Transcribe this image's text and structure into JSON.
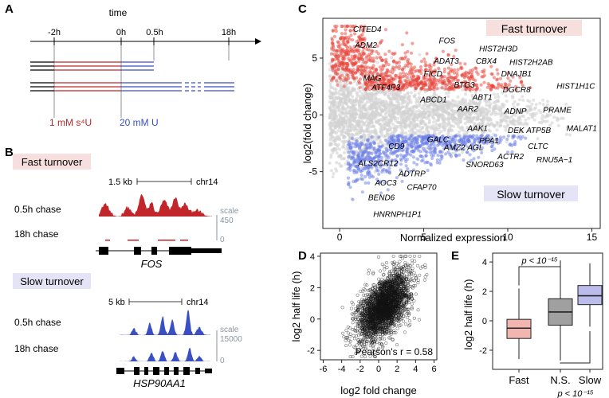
{
  "colors": {
    "red": "#c0262a",
    "blue": "#3a4fc4",
    "pink_bg": "#f6dfdc",
    "lavender_bg": "#e4e4f6",
    "grey_scale": "#8a97a0"
  },
  "panel_a": {
    "letter": "A",
    "title": "time",
    "ticks": [
      "-2h",
      "0h",
      "0.5h",
      "18h"
    ],
    "label_red": "1 mM s⁴U",
    "label_blue": "20 mM U"
  },
  "panel_b": {
    "letter": "B",
    "fast": {
      "title": "Fast turnover",
      "scalebar": "1.5 kb",
      "chrom": "chr14",
      "track1": "0.5h chase",
      "track2": "18h chase",
      "scale_label": "scale",
      "scale_max": "450",
      "scale_min": "0",
      "gene": "FOS"
    },
    "slow": {
      "title": "Slow turnover",
      "scalebar": "5 kb",
      "chrom": "chr14",
      "track1": "0.5h chase",
      "track2": "18h chase",
      "scale_label": "scale",
      "scale_max": "15000",
      "scale_min": "0",
      "gene": "HSP90AA1"
    }
  },
  "panel_c": {
    "letter": "C",
    "fast_label": "Fast turnover",
    "slow_label": "Slow turnover",
    "chart_data": {
      "type": "scatter",
      "xlabel": "Normalized expression",
      "ylabel": "log2(fold change)",
      "xlim": [
        -1,
        15.5
      ],
      "ylim": [
        -10,
        8.5
      ],
      "xticks": [
        "0",
        "5",
        "10",
        "15"
      ],
      "yticks": [
        "-5",
        "0",
        "5"
      ],
      "gene_labels_up": [
        {
          "name": "CITED4",
          "x": 0.8,
          "y": 7.3
        },
        {
          "name": "ADM2",
          "x": 0.9,
          "y": 5.9
        },
        {
          "name": "FOS",
          "x": 5.9,
          "y": 6.3
        },
        {
          "name": "HIST2H3D",
          "x": 8.3,
          "y": 5.6
        },
        {
          "name": "ADAT3",
          "x": 5.6,
          "y": 4.5
        },
        {
          "name": "CBX4",
          "x": 8.1,
          "y": 4.5
        },
        {
          "name": "HIST2H2AB",
          "x": 10.1,
          "y": 4.4
        },
        {
          "name": "DNAJB1",
          "x": 9.6,
          "y": 3.4
        },
        {
          "name": "MAG",
          "x": 1.4,
          "y": 3.0
        },
        {
          "name": "FICD",
          "x": 5.0,
          "y": 3.4
        },
        {
          "name": "BTG3",
          "x": 6.8,
          "y": 2.4
        },
        {
          "name": "ATF4P3",
          "x": 1.9,
          "y": 2.2
        },
        {
          "name": "DGCR8",
          "x": 9.7,
          "y": 2.0
        },
        {
          "name": "HIST1H1C",
          "x": 12.9,
          "y": 2.3
        },
        {
          "name": "ABCD1",
          "x": 4.8,
          "y": 1.1
        },
        {
          "name": "ABT1",
          "x": 7.9,
          "y": 1.3
        },
        {
          "name": "AAR2",
          "x": 7.0,
          "y": 0.3
        },
        {
          "name": "ADNP",
          "x": 9.8,
          "y": 0.1
        },
        {
          "name": "PRAME",
          "x": 12.1,
          "y": 0.2
        }
      ],
      "gene_labels_down": [
        {
          "name": "MALAT1",
          "x": 13.5,
          "y": -1.4
        },
        {
          "name": "AAK1",
          "x": 7.6,
          "y": -1.4
        },
        {
          "name": "DEK",
          "x": 10.0,
          "y": -1.6
        },
        {
          "name": "ATP5B",
          "x": 11.1,
          "y": -1.6
        },
        {
          "name": "GALC",
          "x": 5.2,
          "y": -2.4
        },
        {
          "name": "PPA1",
          "x": 8.3,
          "y": -2.5
        },
        {
          "name": "CD9",
          "x": 2.9,
          "y": -3.0
        },
        {
          "name": "AMZ2",
          "x": 6.2,
          "y": -3.1
        },
        {
          "name": "AGL",
          "x": 7.6,
          "y": -3.1
        },
        {
          "name": "CLTC",
          "x": 11.2,
          "y": -3.0
        },
        {
          "name": "ACTR2",
          "x": 9.4,
          "y": -3.9
        },
        {
          "name": "RNU5A−1",
          "x": 11.7,
          "y": -4.2
        },
        {
          "name": "ALS2CR12",
          "x": 1.1,
          "y": -4.5
        },
        {
          "name": "SNORD63",
          "x": 7.5,
          "y": -4.6
        },
        {
          "name": "ADTRP",
          "x": 3.5,
          "y": -5.4
        },
        {
          "name": "AOC3",
          "x": 2.1,
          "y": -6.2
        },
        {
          "name": "CFAP70",
          "x": 4.0,
          "y": -6.6
        },
        {
          "name": "BEND6",
          "x": 1.7,
          "y": -7.5
        },
        {
          "name": "HNRNPH1P1",
          "x": 2.0,
          "y": -9.0
        }
      ]
    }
  },
  "panel_d": {
    "letter": "D",
    "annotation": "Pearson's r = 0.58",
    "chart_data": {
      "type": "scatter",
      "xlabel": "log2 fold change",
      "ylabel": "log2 half life (h)",
      "xlim": [
        -6.3,
        6.3
      ],
      "ylim": [
        -2.6,
        4.2
      ],
      "xticks": [
        "-6",
        "-4",
        "-2",
        "0",
        "2",
        "4",
        "6"
      ],
      "yticks": [
        "-2",
        "0",
        "2",
        "4"
      ],
      "pearson_r": 0.58
    }
  },
  "panel_e": {
    "letter": "E",
    "chart_data": {
      "type": "box",
      "ylabel": "log2 half life (h)",
      "ylim": [
        -3.3,
        4.6
      ],
      "yticks": [
        "-2",
        "0",
        "2",
        "4"
      ],
      "categories": [
        "Fast",
        "N.S.",
        "Slow"
      ],
      "boxes": [
        {
          "name": "Fast",
          "whisker_low": -2.6,
          "q1": -1.2,
          "median": -0.5,
          "q3": 0.1,
          "whisker_high": 2.2,
          "color": "#f2b6b0"
        },
        {
          "name": "N.S.",
          "whisker_low": -2.7,
          "q1": -0.3,
          "median": 0.6,
          "q3": 1.5,
          "whisker_high": 4.1,
          "color": "#a0a0a0"
        },
        {
          "name": "Slow",
          "whisker_low": -0.4,
          "q1": 1.1,
          "median": 1.7,
          "q3": 2.4,
          "whisker_high": 3.9,
          "color": "#bcbcec"
        }
      ],
      "sig_top": "p < 10⁻¹⁵",
      "sig_bottom": "p < 10⁻¹⁵"
    }
  }
}
